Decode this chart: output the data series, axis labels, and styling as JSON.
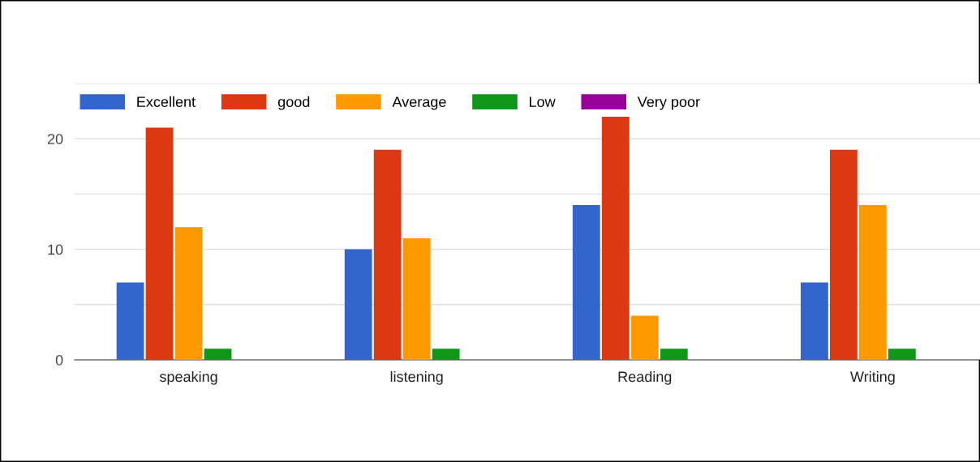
{
  "chart_data": {
    "type": "bar",
    "categories": [
      "speaking",
      "listening",
      "Reading",
      "Writing"
    ],
    "series": [
      {
        "name": "Excellent",
        "color": "#3366cc",
        "values": [
          7,
          10,
          14,
          7
        ]
      },
      {
        "name": "good",
        "color": "#dc3912",
        "values": [
          21,
          19,
          22,
          19
        ]
      },
      {
        "name": "Average",
        "color": "#ff9900",
        "values": [
          12,
          11,
          4,
          14
        ]
      },
      {
        "name": "Low",
        "color": "#109618",
        "values": [
          1,
          1,
          1,
          1
        ]
      },
      {
        "name": "Very poor",
        "color": "#990099",
        "values": [
          0,
          0,
          0,
          0
        ]
      }
    ],
    "ylim": [
      0,
      25
    ],
    "yticks": [
      0,
      {
        "value": 5,
        "label": null
      },
      10,
      {
        "value": 15,
        "label": null
      },
      20,
      {
        "value": 25,
        "label": null
      }
    ],
    "grid": "y",
    "legend": "top left"
  }
}
